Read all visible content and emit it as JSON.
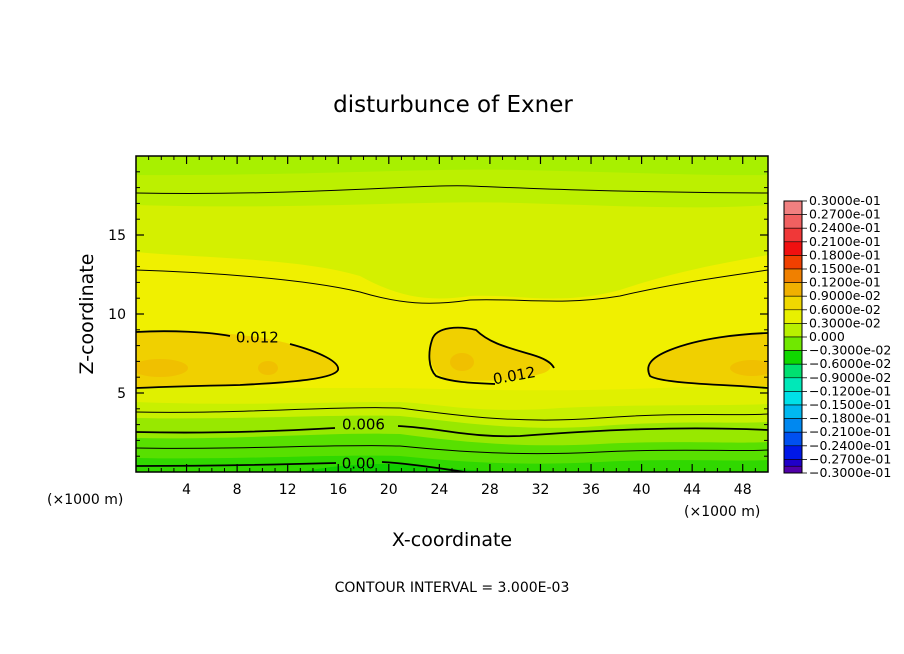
{
  "chart_data": {
    "type": "heatmap",
    "title": "disturbunce of Exner",
    "xlabel": "X-coordinate",
    "ylabel": "Z-coordinate",
    "x_unit": "(×1000 m)",
    "y_unit": "(×1000 m)",
    "footer": "CONTOUR INTERVAL = 3.000E-03",
    "xlim": [
      0,
      50
    ],
    "ylim": [
      0,
      20
    ],
    "x_ticks": [
      4,
      8,
      12,
      16,
      20,
      24,
      28,
      32,
      36,
      40,
      44,
      48
    ],
    "y_ticks": [
      5,
      10,
      15
    ],
    "contour_interval": 0.003,
    "contour_labels": [
      {
        "text": "0.012",
        "x": 9.6,
        "z": 8.5
      },
      {
        "text": "0.012",
        "x": 30.0,
        "z": 6.1
      },
      {
        "text": "0.006",
        "x": 18.0,
        "z": 3.0
      },
      {
        "text": "0.00",
        "x": 17.6,
        "z": 0.55
      }
    ],
    "colorbar": {
      "levels": [
        {
          "label": "0.3000e-01",
          "color": "#f08080"
        },
        {
          "label": "0.2700e-01",
          "color": "#f06060"
        },
        {
          "label": "0.2400e-01",
          "color": "#f03838"
        },
        {
          "label": "0.2100e-01",
          "color": "#f01010"
        },
        {
          "label": "0.1800e-01",
          "color": "#f04000"
        },
        {
          "label": "0.1500e-01",
          "color": "#f08000"
        },
        {
          "label": "0.1200e-01",
          "color": "#f0b000"
        },
        {
          "label": "0.9000e-02",
          "color": "#f0d800"
        },
        {
          "label": "0.6000e-02",
          "color": "#e8f000"
        },
        {
          "label": "0.3000e-02",
          "color": "#b8f000"
        },
        {
          "label": "0.000",
          "color": "#70e800"
        },
        {
          "label": "−0.3000e-02",
          "color": "#10d800"
        },
        {
          "label": "−0.6000e-02",
          "color": "#00e070"
        },
        {
          "label": "−0.9000e-02",
          "color": "#00e8b8"
        },
        {
          "label": "−0.1200e-01",
          "color": "#00e0e8"
        },
        {
          "label": "−0.1500e-01",
          "color": "#00b8f0"
        },
        {
          "label": "−0.1800e-01",
          "color": "#0088f0"
        },
        {
          "label": "−0.2100e-01",
          "color": "#0050f0"
        },
        {
          "label": "−0.2400e-01",
          "color": "#0018e8"
        },
        {
          "label": "−0.2700e-01",
          "color": "#2000c8"
        },
        {
          "label": "−0.3000e-01",
          "color": "#5000a8"
        }
      ]
    }
  }
}
